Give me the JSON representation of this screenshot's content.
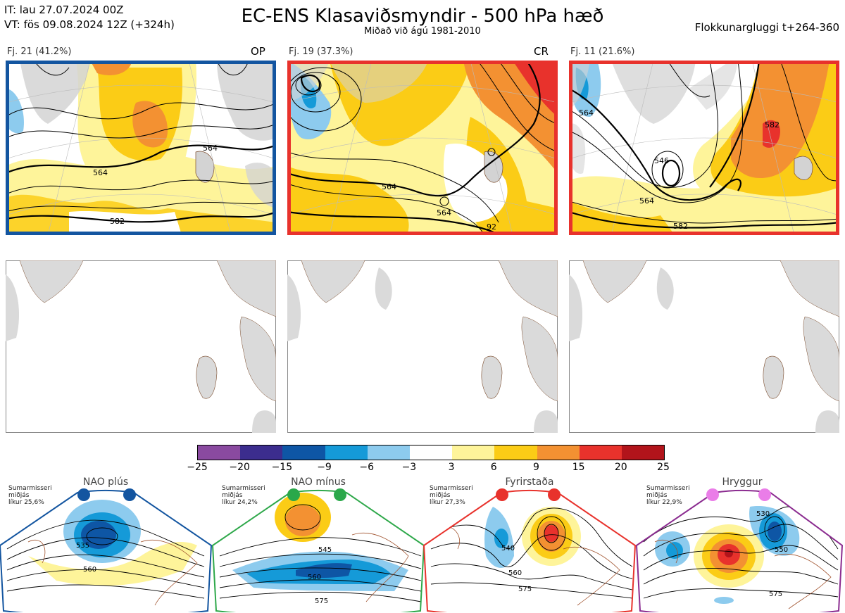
{
  "header": {
    "it": "IT: lau 27.07.2024 00Z",
    "vt": "VT: fös 09.08.2024 12Z  (+324h)",
    "title": "EC-ENS Klasaviðsmyndir - 500 hPa hæð",
    "subtitle": "Miðað við ágú 1981-2010",
    "window": "Flokkunargluggi t+264-360"
  },
  "clusters": [
    {
      "label": "Fj. 21 (41.2%)",
      "tag": "OP",
      "frame_color": "#1355a0",
      "contours": [
        "564",
        "564",
        "582"
      ]
    },
    {
      "label": "Fj. 19 (37.3%)",
      "tag": "CR",
      "frame_color": "#e8322c",
      "contours": [
        "564",
        "564",
        "92"
      ]
    },
    {
      "label": "Fj. 11 (21.6%)",
      "tag": "",
      "frame_color": "#e8322c",
      "contours": [
        "564",
        "546",
        "564",
        "582",
        "582"
      ]
    }
  ],
  "colorbar": {
    "colors": [
      "#8a4aa0",
      "#3c2d8e",
      "#0e56a5",
      "#159ad8",
      "#8dcbee",
      "#ffffff",
      "#fef49a",
      "#fbcc16",
      "#f39132",
      "#e8322c",
      "#b2141b"
    ],
    "labels": [
      "−25",
      "−20",
      "−15",
      "−9",
      "−6",
      "−3",
      "3",
      "6",
      "9",
      "15",
      "20",
      "25"
    ]
  },
  "regimes": [
    {
      "name": "NAO plús",
      "season": "Sumarmisseri",
      "mid": "miðjás",
      "prob": "líkur 25,6%",
      "frame_color": "#1355a0",
      "dot_color": "#1355a0",
      "contours": [
        "535",
        "560"
      ]
    },
    {
      "name": "NAO mínus",
      "season": "Sumarmisseri",
      "mid": "miðjás",
      "prob": "líkur 24,2%",
      "frame_color": "#2ea84a",
      "dot_color": "#2aa84a",
      "contours": [
        "545",
        "560",
        "575"
      ]
    },
    {
      "name": "Fyrirstaða",
      "season": "Sumarmisseri",
      "mid": "miðjás",
      "prob": "líkur 27,3%",
      "frame_color": "#e8322c",
      "dot_color": "#e8322c",
      "contours": [
        "540",
        "560",
        "575"
      ]
    },
    {
      "name": "Hryggur",
      "season": "Sumarmisseri",
      "mid": "miðjás",
      "prob": "líkur 22,9%",
      "frame_color": "#8b2c90",
      "dot_color": "#ea7de8",
      "contours": [
        "530",
        "550",
        "575"
      ]
    }
  ]
}
